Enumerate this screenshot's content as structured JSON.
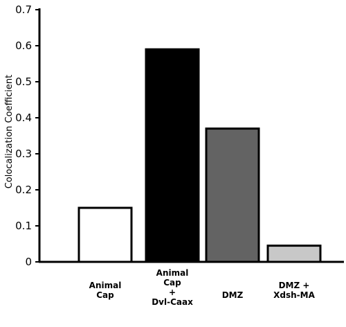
{
  "chart_data": {
    "type": "bar",
    "title": "",
    "xlabel": "",
    "ylabel": "Colocalization Coefficient",
    "ylim": [
      0,
      0.7
    ],
    "yticks": [
      0,
      0.1,
      0.2,
      0.3,
      0.4,
      0.5,
      0.6,
      0.7
    ],
    "ytick_labels": [
      "0",
      "0.1",
      "0.2",
      "0.3",
      "0.4",
      "0.5",
      "0.6",
      "0.7"
    ],
    "grid": false,
    "categories": [
      [
        "Animal",
        "Cap"
      ],
      [
        "Animal",
        "Cap",
        "+",
        "Dvl-Caax"
      ],
      [
        "DMZ"
      ],
      [
        "DMZ +",
        "Xdsh-MA"
      ]
    ],
    "values": [
      0.15,
      0.59,
      0.37,
      0.045
    ],
    "colors": [
      "#ffffff",
      "#000000",
      "#636363",
      "#c8c8c8"
    ],
    "edge_color": "#000000"
  }
}
